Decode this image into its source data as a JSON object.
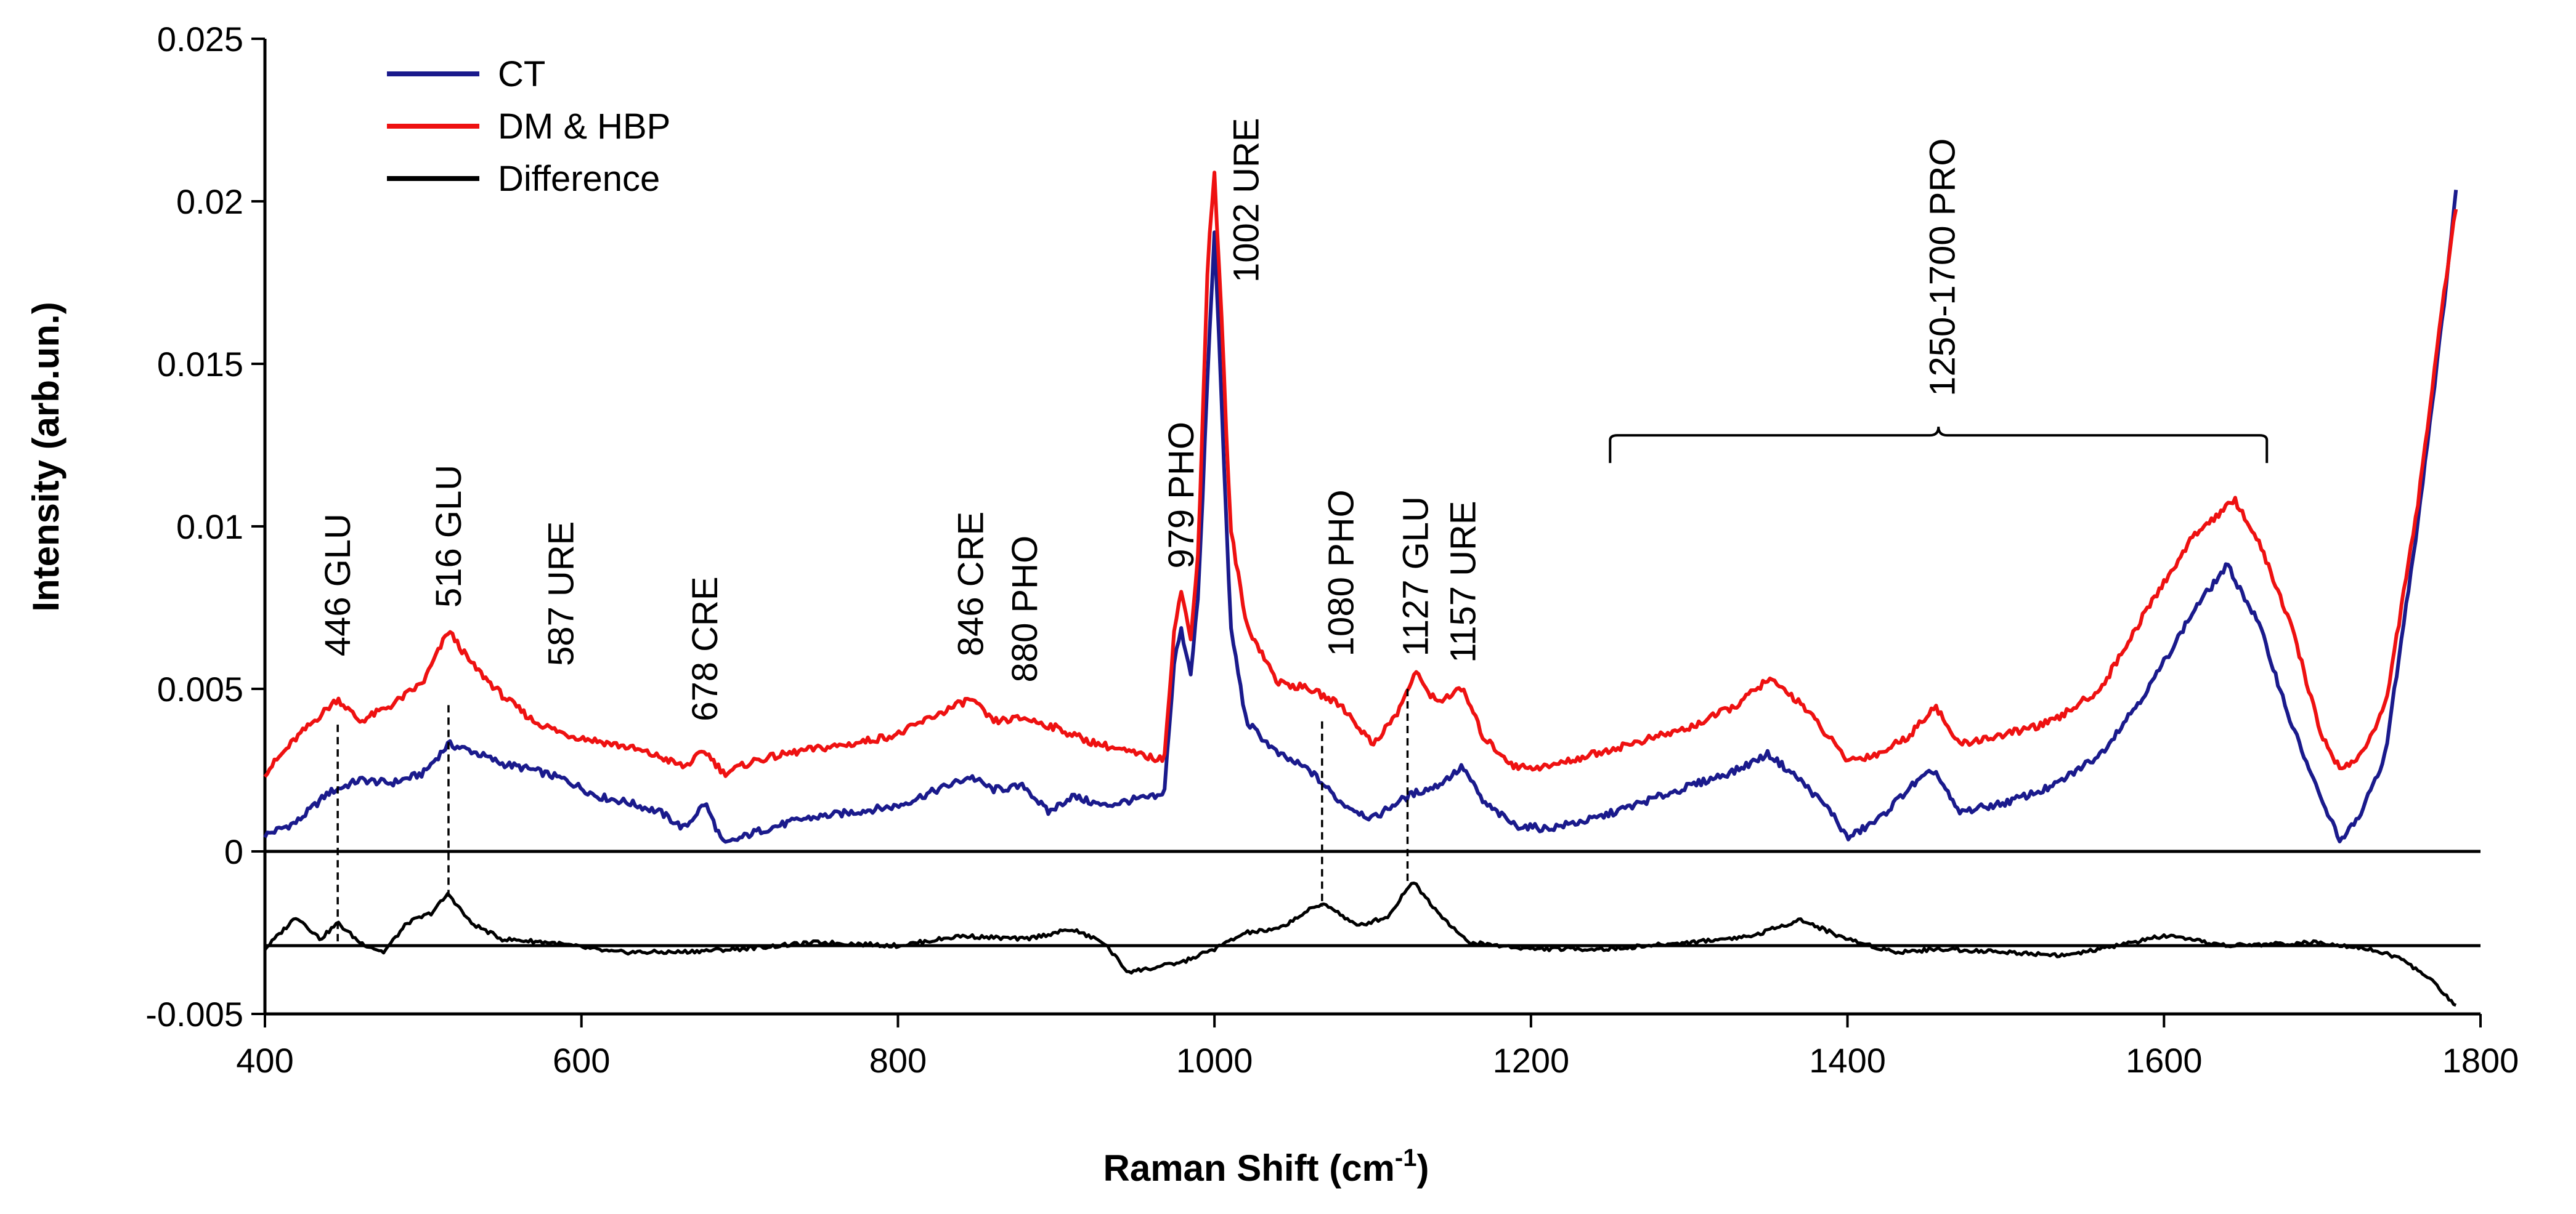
{
  "chart_data": {
    "type": "line",
    "title": "",
    "xlabel": "Raman Shift (cm",
    "xlabel_sup": "-1",
    "xlabel_tail": ")",
    "ylabel": "Intensity (arb.un.)",
    "xlim": [
      400,
      1800
    ],
    "ylim": [
      -0.005,
      0.025
    ],
    "xticks": [
      {
        "value": 400,
        "label": "400"
      },
      {
        "value": 600,
        "label": "600"
      },
      {
        "value": 800,
        "label": "800"
      },
      {
        "value": 1000,
        "label": "1000"
      },
      {
        "value": 1200,
        "label": "1200"
      },
      {
        "value": 1400,
        "label": "1400"
      },
      {
        "value": 1600,
        "label": "1600"
      },
      {
        "value": 1800,
        "label": "1800"
      }
    ],
    "yticks": [
      {
        "value": -0.005,
        "label": "-0.005"
      },
      {
        "value": 0,
        "label": "0"
      },
      {
        "value": 0.005,
        "label": "0.005"
      },
      {
        "value": 0.01,
        "label": "0.01"
      },
      {
        "value": 0.015,
        "label": "0.015"
      },
      {
        "value": 0.02,
        "label": "0.02"
      },
      {
        "value": 0.025,
        "label": "0.025"
      }
    ],
    "reference_lines": [
      0,
      -0.0029
    ],
    "legend": {
      "position": "top-left"
    },
    "series": [
      {
        "name": "CT",
        "color": "#1a1a8c",
        "points": [
          [
            400,
            0.0005
          ],
          [
            420,
            0.0009
          ],
          [
            440,
            0.0018
          ],
          [
            460,
            0.0022
          ],
          [
            480,
            0.0021
          ],
          [
            500,
            0.0024
          ],
          [
            516,
            0.0033
          ],
          [
            530,
            0.0031
          ],
          [
            550,
            0.0027
          ],
          [
            570,
            0.0025
          ],
          [
            590,
            0.0022
          ],
          [
            610,
            0.0017
          ],
          [
            630,
            0.0015
          ],
          [
            650,
            0.0012
          ],
          [
            665,
            0.0007
          ],
          [
            678,
            0.0015
          ],
          [
            690,
            0.0002
          ],
          [
            710,
            0.0006
          ],
          [
            740,
            0.001
          ],
          [
            770,
            0.0012
          ],
          [
            800,
            0.0014
          ],
          [
            820,
            0.0018
          ],
          [
            846,
            0.0023
          ],
          [
            860,
            0.0019
          ],
          [
            880,
            0.002
          ],
          [
            895,
            0.0012
          ],
          [
            910,
            0.0017
          ],
          [
            930,
            0.0014
          ],
          [
            950,
            0.0016
          ],
          [
            968,
            0.0017
          ],
          [
            975,
            0.006
          ],
          [
            979,
            0.0068
          ],
          [
            985,
            0.0055
          ],
          [
            990,
            0.008
          ],
          [
            996,
            0.015
          ],
          [
            1000,
            0.019
          ],
          [
            1004,
            0.0145
          ],
          [
            1010,
            0.007
          ],
          [
            1020,
            0.004
          ],
          [
            1040,
            0.003
          ],
          [
            1060,
            0.0025
          ],
          [
            1080,
            0.0015
          ],
          [
            1100,
            0.001
          ],
          [
            1115,
            0.0015
          ],
          [
            1127,
            0.0018
          ],
          [
            1140,
            0.002
          ],
          [
            1157,
            0.0026
          ],
          [
            1170,
            0.0015
          ],
          [
            1190,
            0.0008
          ],
          [
            1210,
            0.0007
          ],
          [
            1240,
            0.001
          ],
          [
            1270,
            0.0015
          ],
          [
            1300,
            0.002
          ],
          [
            1330,
            0.0025
          ],
          [
            1350,
            0.003
          ],
          [
            1370,
            0.0022
          ],
          [
            1390,
            0.0012
          ],
          [
            1400,
            0.0004
          ],
          [
            1420,
            0.001
          ],
          [
            1440,
            0.002
          ],
          [
            1455,
            0.0025
          ],
          [
            1470,
            0.0012
          ],
          [
            1500,
            0.0015
          ],
          [
            1530,
            0.002
          ],
          [
            1560,
            0.003
          ],
          [
            1590,
            0.005
          ],
          [
            1620,
            0.0075
          ],
          [
            1640,
            0.0088
          ],
          [
            1660,
            0.007
          ],
          [
            1680,
            0.004
          ],
          [
            1700,
            0.0015
          ],
          [
            1712,
            0.0003
          ],
          [
            1725,
            0.0012
          ],
          [
            1740,
            0.003
          ],
          [
            1760,
            0.01
          ],
          [
            1775,
            0.016
          ],
          [
            1785,
            0.0205
          ]
        ]
      },
      {
        "name": "DM & HBP",
        "color": "#ee1111",
        "points": [
          [
            400,
            0.0024
          ],
          [
            420,
            0.0035
          ],
          [
            446,
            0.0047
          ],
          [
            460,
            0.004
          ],
          [
            480,
            0.0045
          ],
          [
            500,
            0.0052
          ],
          [
            516,
            0.0068
          ],
          [
            530,
            0.0058
          ],
          [
            550,
            0.0048
          ],
          [
            570,
            0.004
          ],
          [
            590,
            0.0036
          ],
          [
            610,
            0.0034
          ],
          [
            630,
            0.0032
          ],
          [
            650,
            0.0029
          ],
          [
            665,
            0.0026
          ],
          [
            678,
            0.0031
          ],
          [
            690,
            0.0024
          ],
          [
            710,
            0.0028
          ],
          [
            740,
            0.0031
          ],
          [
            770,
            0.0033
          ],
          [
            800,
            0.0036
          ],
          [
            820,
            0.0041
          ],
          [
            846,
            0.0047
          ],
          [
            860,
            0.004
          ],
          [
            880,
            0.0041
          ],
          [
            900,
            0.0038
          ],
          [
            920,
            0.0034
          ],
          [
            950,
            0.003
          ],
          [
            968,
            0.0028
          ],
          [
            975,
            0.007
          ],
          [
            979,
            0.008
          ],
          [
            985,
            0.0065
          ],
          [
            990,
            0.0095
          ],
          [
            996,
            0.0185
          ],
          [
            1000,
            0.0208
          ],
          [
            1004,
            0.017
          ],
          [
            1010,
            0.01
          ],
          [
            1020,
            0.007
          ],
          [
            1040,
            0.0052
          ],
          [
            1060,
            0.005
          ],
          [
            1080,
            0.0045
          ],
          [
            1100,
            0.0033
          ],
          [
            1115,
            0.0042
          ],
          [
            1127,
            0.0055
          ],
          [
            1140,
            0.0046
          ],
          [
            1157,
            0.005
          ],
          [
            1170,
            0.0035
          ],
          [
            1190,
            0.0026
          ],
          [
            1210,
            0.0026
          ],
          [
            1240,
            0.003
          ],
          [
            1270,
            0.0034
          ],
          [
            1300,
            0.0038
          ],
          [
            1330,
            0.0045
          ],
          [
            1350,
            0.0053
          ],
          [
            1370,
            0.0046
          ],
          [
            1390,
            0.0034
          ],
          [
            1400,
            0.0028
          ],
          [
            1420,
            0.003
          ],
          [
            1440,
            0.0036
          ],
          [
            1455,
            0.0045
          ],
          [
            1470,
            0.0033
          ],
          [
            1500,
            0.0036
          ],
          [
            1530,
            0.004
          ],
          [
            1560,
            0.005
          ],
          [
            1590,
            0.0075
          ],
          [
            1620,
            0.0098
          ],
          [
            1645,
            0.0108
          ],
          [
            1660,
            0.0095
          ],
          [
            1680,
            0.007
          ],
          [
            1700,
            0.0035
          ],
          [
            1712,
            0.0025
          ],
          [
            1725,
            0.003
          ],
          [
            1740,
            0.0045
          ],
          [
            1760,
            0.0105
          ],
          [
            1775,
            0.0165
          ],
          [
            1785,
            0.02
          ]
        ]
      },
      {
        "name": "Difference",
        "color": "#000000",
        "points": [
          [
            400,
            -0.003
          ],
          [
            410,
            -0.0025
          ],
          [
            420,
            -0.002
          ],
          [
            435,
            -0.0027
          ],
          [
            446,
            -0.0022
          ],
          [
            460,
            -0.0028
          ],
          [
            475,
            -0.0031
          ],
          [
            490,
            -0.0022
          ],
          [
            505,
            -0.0019
          ],
          [
            516,
            -0.0013
          ],
          [
            530,
            -0.0022
          ],
          [
            550,
            -0.0027
          ],
          [
            580,
            -0.0028
          ],
          [
            620,
            -0.0031
          ],
          [
            660,
            -0.0031
          ],
          [
            700,
            -0.003
          ],
          [
            750,
            -0.0028
          ],
          [
            800,
            -0.0029
          ],
          [
            840,
            -0.0026
          ],
          [
            880,
            -0.0027
          ],
          [
            910,
            -0.0024
          ],
          [
            930,
            -0.0028
          ],
          [
            945,
            -0.0037
          ],
          [
            960,
            -0.0036
          ],
          [
            980,
            -0.0034
          ],
          [
            1000,
            -0.003
          ],
          [
            1020,
            -0.0025
          ],
          [
            1040,
            -0.0024
          ],
          [
            1060,
            -0.0018
          ],
          [
            1070,
            -0.0016
          ],
          [
            1090,
            -0.0023
          ],
          [
            1110,
            -0.002
          ],
          [
            1125,
            -0.0009
          ],
          [
            1140,
            -0.0018
          ],
          [
            1160,
            -0.0028
          ],
          [
            1200,
            -0.003
          ],
          [
            1250,
            -0.003
          ],
          [
            1300,
            -0.0028
          ],
          [
            1340,
            -0.0026
          ],
          [
            1370,
            -0.0021
          ],
          [
            1400,
            -0.0027
          ],
          [
            1430,
            -0.0031
          ],
          [
            1460,
            -0.003
          ],
          [
            1500,
            -0.0031
          ],
          [
            1540,
            -0.0032
          ],
          [
            1580,
            -0.0028
          ],
          [
            1600,
            -0.0026
          ],
          [
            1640,
            -0.0029
          ],
          [
            1700,
            -0.0028
          ],
          [
            1730,
            -0.003
          ],
          [
            1750,
            -0.0033
          ],
          [
            1770,
            -0.004
          ],
          [
            1785,
            -0.0048
          ]
        ]
      }
    ],
    "annotations": [
      {
        "text": "446 GLU",
        "x": 446,
        "y": 0.006,
        "marker_x": 446,
        "marker_from": 0.0039,
        "marker_to": -0.0029
      },
      {
        "text": "516 GLU",
        "x": 516,
        "y": 0.0075,
        "marker_x": 516,
        "marker_from": 0.0045,
        "marker_to": -0.0014
      },
      {
        "text": "587 URE",
        "x": 587,
        "y": 0.0057,
        "marker_x": null
      },
      {
        "text": "678 CRE",
        "x": 678,
        "y": 0.004,
        "marker_x": null
      },
      {
        "text": "846 CRE",
        "x": 846,
        "y": 0.006,
        "marker_x": null
      },
      {
        "text": "880 PHO",
        "x": 880,
        "y": 0.0052,
        "marker_x": null
      },
      {
        "text": "979 PHO",
        "x": 979,
        "y": 0.0087,
        "marker_x": null
      },
      {
        "text": "1002 URE",
        "x": 1020,
        "y": 0.0175,
        "marker_x": null
      },
      {
        "text": "1080 PHO",
        "x": 1080,
        "y": 0.006,
        "marker_x": 1068,
        "marker_from": 0.004,
        "marker_to": -0.0017
      },
      {
        "text": "1127 GLU",
        "x": 1127,
        "y": 0.006,
        "marker_x": 1122,
        "marker_from": 0.005,
        "marker_to": -0.001
      },
      {
        "text": "1157 URE",
        "x": 1157,
        "y": 0.0058,
        "marker_x": null
      },
      {
        "text": "1250-1700 PRO",
        "x": 1460,
        "y": 0.014,
        "marker_x": null
      }
    ],
    "brace": {
      "x_start": 1250,
      "x_end": 1665,
      "y": 0.0128,
      "label": "1250-1700 PRO"
    }
  }
}
